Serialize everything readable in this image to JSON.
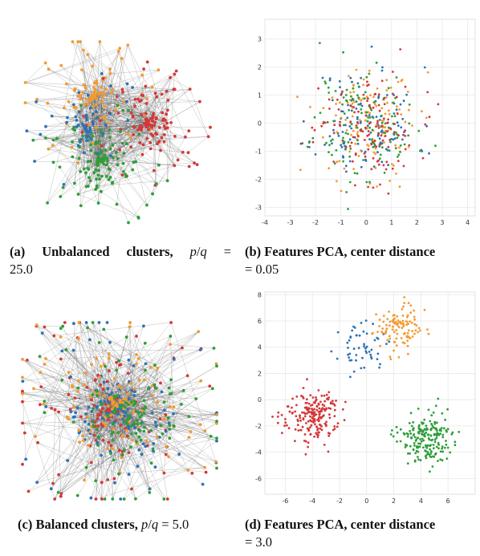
{
  "colors": {
    "blue": "#2b73b5",
    "orange": "#f39a2e",
    "green": "#2e9e39",
    "red": "#d43838",
    "edge": "#555555"
  },
  "captions": {
    "a": {
      "label": "(a) Unbalanced clusters,",
      "ratio_p": "p",
      "ratio_sep": "/",
      "ratio_q": "q",
      "eq": "=",
      "value": "25.0"
    },
    "b": {
      "label": "(b) Features PCA, center distance",
      "value": "= 0.05"
    },
    "c": {
      "label": "(c) Balanced clusters,",
      "ratio_p": "p",
      "ratio_sep": "/",
      "ratio_q": "q",
      "eq": "=",
      "value": "5.0"
    },
    "d": {
      "label": "(d) Features PCA, center distance",
      "value": "= 3.0"
    }
  },
  "chart_data": [
    {
      "id": "b",
      "type": "scatter",
      "xlim": [
        -4,
        4.3
      ],
      "ylim": [
        -3.3,
        3.7
      ],
      "xticks": [
        -4,
        -3,
        -2,
        -1,
        0,
        1,
        2,
        3,
        4
      ],
      "yticks": [
        -3,
        -2,
        -1,
        0,
        1,
        2,
        3
      ],
      "grid": true,
      "series": [
        {
          "color": "blue",
          "center": [
            0,
            0
          ],
          "spread": 1.0,
          "n": 125
        },
        {
          "color": "orange",
          "center": [
            0.1,
            0.05
          ],
          "spread": 1.0,
          "n": 125
        },
        {
          "color": "green",
          "center": [
            -0.05,
            -0.05
          ],
          "spread": 1.0,
          "n": 125
        },
        {
          "color": "red",
          "center": [
            0.05,
            0
          ],
          "spread": 1.0,
          "n": 125
        }
      ]
    },
    {
      "id": "d",
      "type": "scatter",
      "xlim": [
        -7.5,
        8
      ],
      "ylim": [
        -7.2,
        8.2
      ],
      "xticks": [
        -6,
        -4,
        -2,
        0,
        2,
        4,
        6
      ],
      "yticks": [
        -6,
        -4,
        -2,
        0,
        2,
        4,
        6,
        8
      ],
      "grid": true,
      "series": [
        {
          "color": "blue",
          "center": [
            -0.3,
            3.9
          ],
          "spread": 0.85,
          "n": 55
        },
        {
          "color": "orange",
          "center": [
            2.3,
            5.5
          ],
          "spread": 0.9,
          "n": 110
        },
        {
          "color": "red",
          "center": [
            -4.0,
            -1.2
          ],
          "spread": 1.0,
          "n": 200
        },
        {
          "color": "green",
          "center": [
            4.2,
            -3.1
          ],
          "spread": 1.0,
          "n": 200
        }
      ]
    }
  ],
  "graph_data": [
    {
      "id": "a",
      "clusters": [
        {
          "color": "orange",
          "center": [
            0.4,
            0.3
          ],
          "r": 0.18,
          "n": 110
        },
        {
          "color": "red",
          "center": [
            0.67,
            0.44
          ],
          "r": 0.17,
          "n": 130
        },
        {
          "color": "green",
          "center": [
            0.43,
            0.63
          ],
          "r": 0.18,
          "n": 130
        },
        {
          "color": "blue",
          "center": [
            0.36,
            0.47
          ],
          "r": 0.16,
          "n": 60
        }
      ]
    },
    {
      "id": "c",
      "clusters": [
        {
          "color": "red",
          "center": [
            0.45,
            0.5
          ],
          "r": 0.3,
          "n": 130
        },
        {
          "color": "blue",
          "center": [
            0.5,
            0.48
          ],
          "r": 0.3,
          "n": 130
        },
        {
          "color": "orange",
          "center": [
            0.48,
            0.47
          ],
          "r": 0.3,
          "n": 130
        },
        {
          "color": "green",
          "center": [
            0.55,
            0.52
          ],
          "r": 0.3,
          "n": 130
        }
      ]
    }
  ]
}
